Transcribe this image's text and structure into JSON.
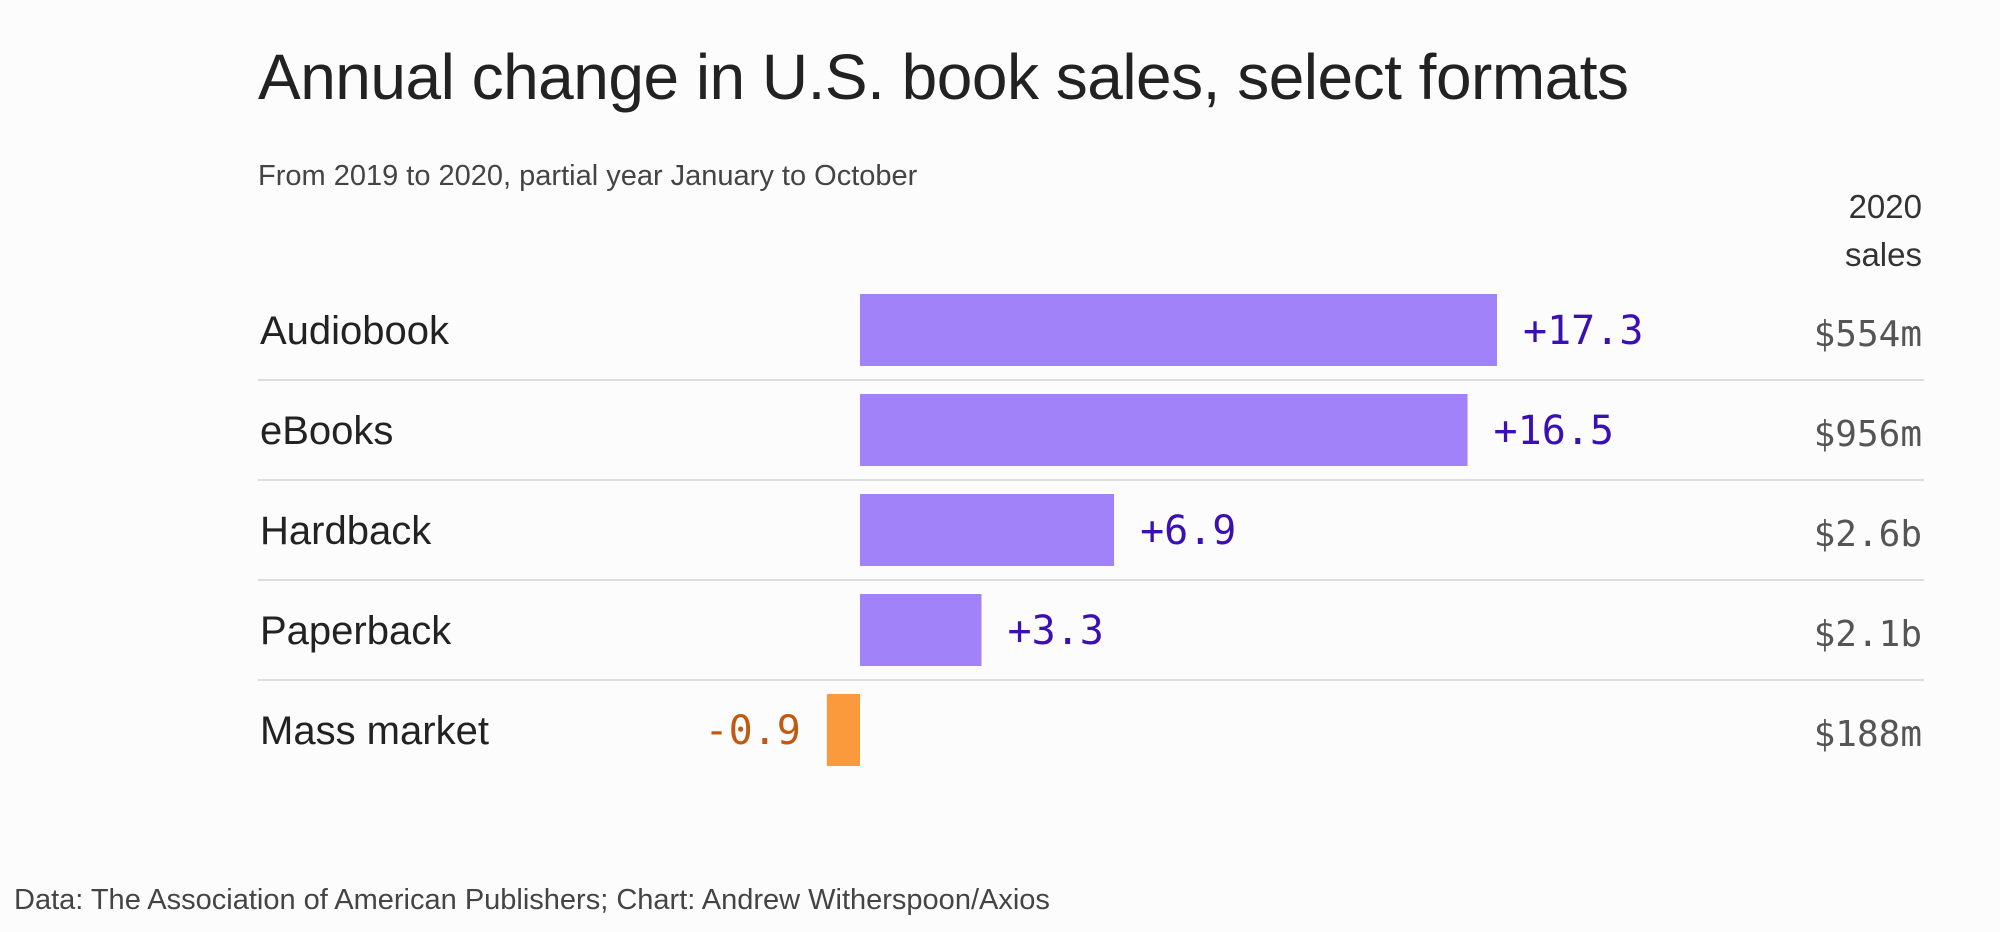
{
  "title": "Annual change in U.S. book sales, select formats",
  "subtitle": "From 2019 to 2020, partial year January to October",
  "column_header": {
    "line1": "2020",
    "line2": "sales"
  },
  "source": "Data: The Association of American Publishers; Chart: Andrew Witherspoon/Axios",
  "colors": {
    "positive_bar": "#a182f9",
    "negative_bar": "#fb9a3c",
    "positive_text": "#3a0fb3",
    "negative_text": "#c05a12",
    "divider": "#dddddd"
  },
  "chart_data": {
    "type": "bar",
    "orientation": "horizontal",
    "title": "Annual change in U.S. book sales, select formats",
    "subtitle": "From 2019 to 2020, partial year January to October",
    "categories": [
      "Audiobook",
      "eBooks",
      "Hardback",
      "Paperback",
      "Mass market"
    ],
    "values": [
      17.3,
      16.5,
      6.9,
      3.3,
      -0.9
    ],
    "value_labels": [
      "+17.3",
      "+16.5",
      "+6.9",
      "+3.3",
      "-0.9"
    ],
    "sales_2020": [
      "$554m",
      "$956m",
      "$2.6b",
      "$2.1b",
      "$188m"
    ],
    "xlim": [
      -0.9,
      17.3
    ],
    "grid": false,
    "legend": "none"
  }
}
